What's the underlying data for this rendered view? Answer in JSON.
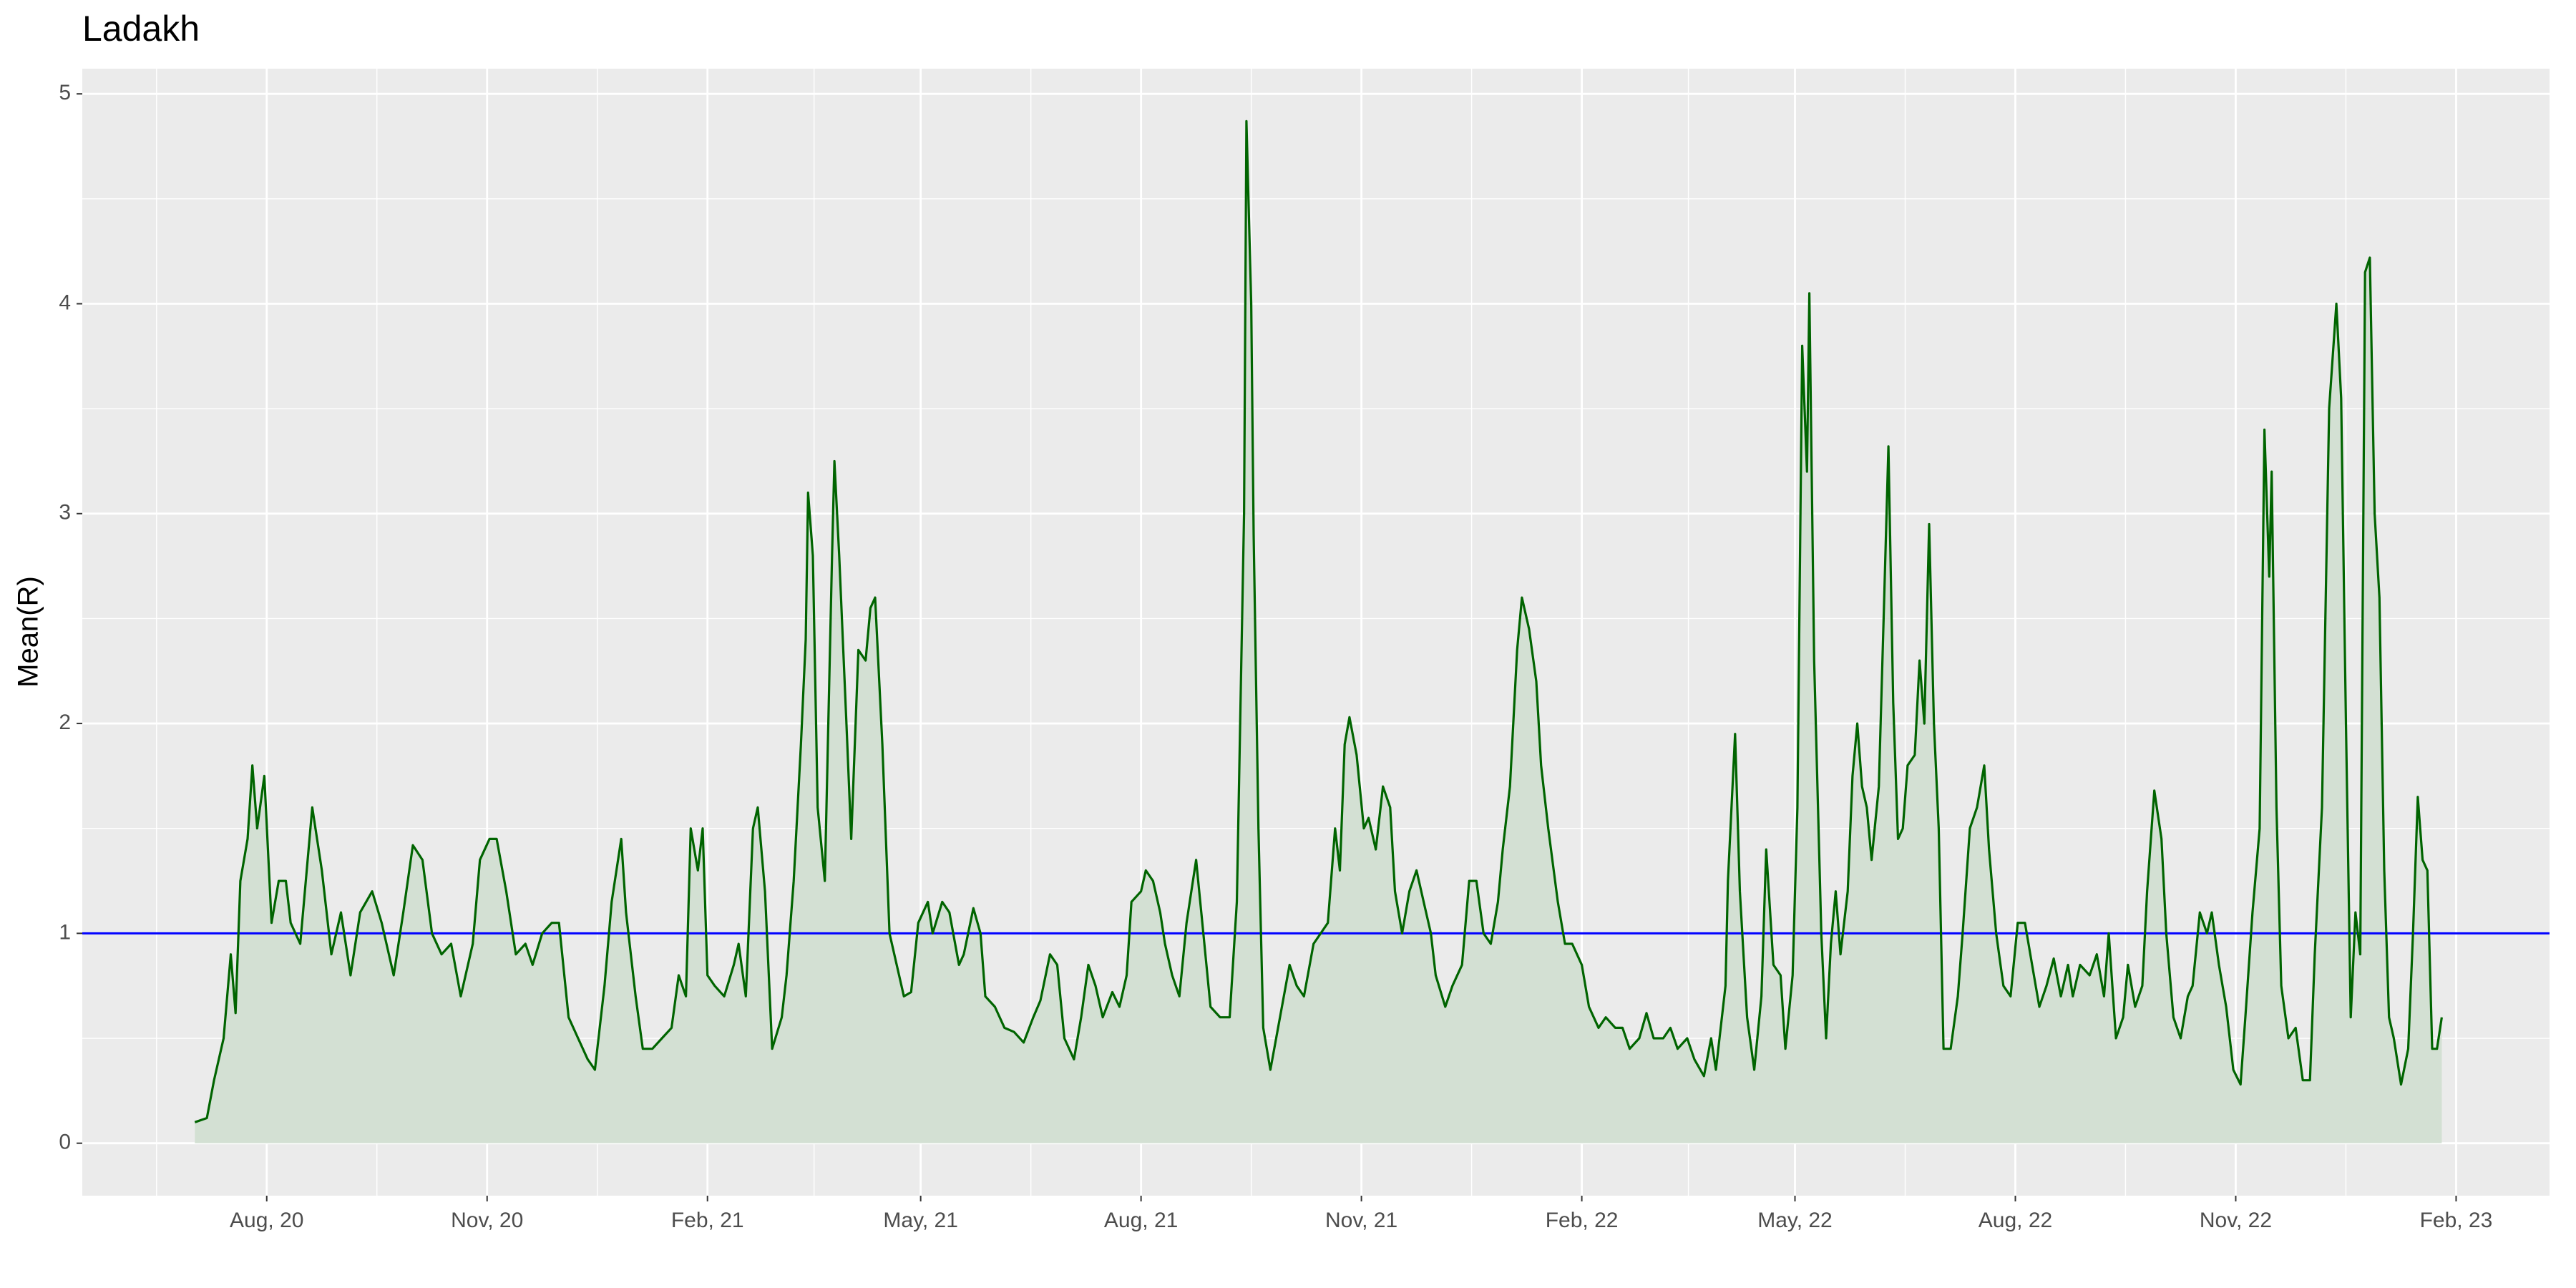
{
  "chart_data": {
    "type": "area-line",
    "title": "Ladakh",
    "y_label": "Mean(R)",
    "x": [
      "2020-07-02",
      "2020-07-07",
      "2020-07-10",
      "2020-07-14",
      "2020-07-17",
      "2020-07-19",
      "2020-07-21",
      "2020-07-24",
      "2020-07-26",
      "2020-07-28",
      "2020-07-31",
      "2020-08-03",
      "2020-08-06",
      "2020-08-09",
      "2020-08-11",
      "2020-08-15",
      "2020-08-20",
      "2020-08-24",
      "2020-08-28",
      "2020-09-01",
      "2020-09-05",
      "2020-09-09",
      "2020-09-14",
      "2020-09-18",
      "2020-09-23",
      "2020-09-27",
      "2020-10-01",
      "2020-10-05",
      "2020-10-09",
      "2020-10-13",
      "2020-10-17",
      "2020-10-21",
      "2020-10-26",
      "2020-10-29",
      "2020-11-02",
      "2020-11-05",
      "2020-11-09",
      "2020-11-13",
      "2020-11-17",
      "2020-11-20",
      "2020-11-24",
      "2020-11-28",
      "2020-12-01",
      "2020-12-05",
      "2020-12-09",
      "2020-12-13",
      "2020-12-16",
      "2020-12-20",
      "2020-12-23",
      "2020-12-27",
      "2020-12-29",
      "2021-01-02",
      "2021-01-05",
      "2021-01-09",
      "2021-01-13",
      "2021-01-17",
      "2021-01-20",
      "2021-01-23",
      "2021-01-25",
      "2021-01-28",
      "2021-01-30",
      "2021-02-01",
      "2021-02-04",
      "2021-02-08",
      "2021-02-12",
      "2021-02-14",
      "2021-02-17",
      "2021-02-20",
      "2021-02-22",
      "2021-02-25",
      "2021-02-28",
      "2021-03-04",
      "2021-03-06",
      "2021-03-09",
      "2021-03-12",
      "2021-03-14",
      "2021-03-15",
      "2021-03-17",
      "2021-03-19",
      "2021-03-22",
      "2021-03-25",
      "2021-03-26",
      "2021-03-28",
      "2021-03-31",
      "2021-04-02",
      "2021-04-05",
      "2021-04-08",
      "2021-04-10",
      "2021-04-12",
      "2021-04-15",
      "2021-04-18",
      "2021-04-22",
      "2021-04-24",
      "2021-04-27",
      "2021-04-30",
      "2021-05-04",
      "2021-05-06",
      "2021-05-10",
      "2021-05-13",
      "2021-05-17",
      "2021-05-19",
      "2021-05-23",
      "2021-05-26",
      "2021-05-28",
      "2021-06-01",
      "2021-06-05",
      "2021-06-09",
      "2021-06-13",
      "2021-06-17",
      "2021-06-20",
      "2021-06-24",
      "2021-06-27",
      "2021-06-30",
      "2021-07-04",
      "2021-07-07",
      "2021-07-10",
      "2021-07-13",
      "2021-07-16",
      "2021-07-20",
      "2021-07-23",
      "2021-07-26",
      "2021-07-28",
      "2021-08-01",
      "2021-08-03",
      "2021-08-06",
      "2021-08-09",
      "2021-08-11",
      "2021-08-14",
      "2021-08-17",
      "2021-08-20",
      "2021-08-24",
      "2021-08-27",
      "2021-08-30",
      "2021-09-03",
      "2021-09-07",
      "2021-09-10",
      "2021-09-13",
      "2021-09-14",
      "2021-09-16",
      "2021-09-17",
      "2021-09-19",
      "2021-09-21",
      "2021-09-24",
      "2021-09-28",
      "2021-10-02",
      "2021-10-05",
      "2021-10-08",
      "2021-10-12",
      "2021-10-15",
      "2021-10-18",
      "2021-10-21",
      "2021-10-23",
      "2021-10-25",
      "2021-10-27",
      "2021-10-30",
      "2021-11-02",
      "2021-11-04",
      "2021-11-07",
      "2021-11-10",
      "2021-11-13",
      "2021-11-15",
      "2021-11-18",
      "2021-11-21",
      "2021-11-24",
      "2021-11-27",
      "2021-11-30",
      "2021-12-02",
      "2021-12-06",
      "2021-12-09",
      "2021-12-13",
      "2021-12-16",
      "2021-12-19",
      "2021-12-22",
      "2021-12-25",
      "2021-12-28",
      "2021-12-30",
      "2022-01-02",
      "2022-01-05",
      "2022-01-07",
      "2022-01-10",
      "2022-01-13",
      "2022-01-15",
      "2022-01-18",
      "2022-01-22",
      "2022-01-25",
      "2022-01-28",
      "2022-02-01",
      "2022-02-04",
      "2022-02-08",
      "2022-02-11",
      "2022-02-15",
      "2022-02-18",
      "2022-02-21",
      "2022-02-25",
      "2022-02-28",
      "2022-03-03",
      "2022-03-07",
      "2022-03-10",
      "2022-03-13",
      "2022-03-17",
      "2022-03-20",
      "2022-03-24",
      "2022-03-27",
      "2022-03-29",
      "2022-04-02",
      "2022-04-03",
      "2022-04-06",
      "2022-04-08",
      "2022-04-11",
      "2022-04-14",
      "2022-04-17",
      "2022-04-19",
      "2022-04-22",
      "2022-04-25",
      "2022-04-27",
      "2022-04-30",
      "2022-05-02",
      "2022-05-04",
      "2022-05-06",
      "2022-05-07",
      "2022-05-09",
      "2022-05-12",
      "2022-05-14",
      "2022-05-16",
      "2022-05-18",
      "2022-05-20",
      "2022-05-23",
      "2022-05-25",
      "2022-05-27",
      "2022-05-29",
      "2022-05-31",
      "2022-06-02",
      "2022-06-05",
      "2022-06-07",
      "2022-06-09",
      "2022-06-11",
      "2022-06-13",
      "2022-06-15",
      "2022-06-17",
      "2022-06-20",
      "2022-06-22",
      "2022-06-24",
      "2022-06-26",
      "2022-06-28",
      "2022-06-30",
      "2022-07-02",
      "2022-07-05",
      "2022-07-08",
      "2022-07-10",
      "2022-07-13",
      "2022-07-16",
      "2022-07-19",
      "2022-07-21",
      "2022-07-24",
      "2022-07-27",
      "2022-07-30",
      "2022-08-02",
      "2022-08-05",
      "2022-08-08",
      "2022-08-11",
      "2022-08-14",
      "2022-08-17",
      "2022-08-20",
      "2022-08-23",
      "2022-08-25",
      "2022-08-28",
      "2022-09-01",
      "2022-09-04",
      "2022-09-07",
      "2022-09-09",
      "2022-09-12",
      "2022-09-15",
      "2022-09-17",
      "2022-09-20",
      "2022-09-23",
      "2022-09-25",
      "2022-09-28",
      "2022-10-01",
      "2022-10-03",
      "2022-10-06",
      "2022-10-09",
      "2022-10-12",
      "2022-10-14",
      "2022-10-17",
      "2022-10-20",
      "2022-10-22",
      "2022-10-25",
      "2022-10-28",
      "2022-10-31",
      "2022-11-03",
      "2022-11-05",
      "2022-11-08",
      "2022-11-11",
      "2022-11-13",
      "2022-11-15",
      "2022-11-16",
      "2022-11-18",
      "2022-11-20",
      "2022-11-23",
      "2022-11-26",
      "2022-11-29",
      "2022-12-02",
      "2022-12-04",
      "2022-12-07",
      "2022-12-10",
      "2022-12-13",
      "2022-12-15",
      "2022-12-17",
      "2022-12-19",
      "2022-12-21",
      "2022-12-23",
      "2022-12-25",
      "2022-12-27",
      "2022-12-29",
      "2022-12-31",
      "2023-01-02",
      "2023-01-04",
      "2023-01-06",
      "2023-01-09",
      "2023-01-12",
      "2023-01-14",
      "2023-01-16",
      "2023-01-18",
      "2023-01-20",
      "2023-01-22",
      "2023-01-24",
      "2023-01-26"
    ],
    "values": [
      0.1,
      0.12,
      0.3,
      0.5,
      0.9,
      0.62,
      1.25,
      1.45,
      1.8,
      1.5,
      1.75,
      1.05,
      1.25,
      1.25,
      1.05,
      0.95,
      1.6,
      1.3,
      0.9,
      1.1,
      0.8,
      1.1,
      1.2,
      1.05,
      0.8,
      1.1,
      1.42,
      1.35,
      1.0,
      0.9,
      0.95,
      0.7,
      0.95,
      1.35,
      1.45,
      1.45,
      1.2,
      0.9,
      0.95,
      0.85,
      1.0,
      1.05,
      1.05,
      0.6,
      0.5,
      0.4,
      0.35,
      0.75,
      1.15,
      1.45,
      1.1,
      0.7,
      0.45,
      0.45,
      0.5,
      0.55,
      0.8,
      0.7,
      1.5,
      1.3,
      1.5,
      0.8,
      0.75,
      0.7,
      0.85,
      0.95,
      0.7,
      1.5,
      1.6,
      1.2,
      0.45,
      0.6,
      0.8,
      1.25,
      1.9,
      2.4,
      3.1,
      2.8,
      1.6,
      1.25,
      2.8,
      3.25,
      2.8,
      2.0,
      1.45,
      2.35,
      2.3,
      2.55,
      2.6,
      1.9,
      1.0,
      0.8,
      0.7,
      0.72,
      1.05,
      1.15,
      1.0,
      1.15,
      1.1,
      0.85,
      0.9,
      1.12,
      1.0,
      0.7,
      0.65,
      0.55,
      0.53,
      0.48,
      0.6,
      0.68,
      0.9,
      0.85,
      0.5,
      0.4,
      0.6,
      0.85,
      0.75,
      0.6,
      0.72,
      0.65,
      0.8,
      1.15,
      1.2,
      1.3,
      1.25,
      1.1,
      0.95,
      0.8,
      0.7,
      1.05,
      1.35,
      1.0,
      0.65,
      0.6,
      0.6,
      1.15,
      3.0,
      4.87,
      4.0,
      2.9,
      1.5,
      0.55,
      0.35,
      0.6,
      0.85,
      0.75,
      0.7,
      0.95,
      1.0,
      1.05,
      1.5,
      1.3,
      1.9,
      2.03,
      1.85,
      1.5,
      1.55,
      1.4,
      1.7,
      1.6,
      1.2,
      1.0,
      1.2,
      1.3,
      1.15,
      1.0,
      0.8,
      0.65,
      0.75,
      0.85,
      1.25,
      1.25,
      1.0,
      0.95,
      1.15,
      1.4,
      1.7,
      2.35,
      2.6,
      2.45,
      2.2,
      1.8,
      1.5,
      1.15,
      0.95,
      0.95,
      0.85,
      0.65,
      0.55,
      0.6,
      0.55,
      0.55,
      0.45,
      0.5,
      0.62,
      0.5,
      0.5,
      0.55,
      0.45,
      0.5,
      0.4,
      0.32,
      0.5,
      0.35,
      0.75,
      1.25,
      1.95,
      1.2,
      0.6,
      0.35,
      0.7,
      1.4,
      0.85,
      0.8,
      0.45,
      0.8,
      1.6,
      3.8,
      3.2,
      4.05,
      2.3,
      1.0,
      0.5,
      0.95,
      1.2,
      0.9,
      1.2,
      1.75,
      2.0,
      1.7,
      1.6,
      1.35,
      1.7,
      2.5,
      3.32,
      2.1,
      1.45,
      1.5,
      1.8,
      1.85,
      2.3,
      2.0,
      2.95,
      2.0,
      1.5,
      0.45,
      0.45,
      0.7,
      1.0,
      1.5,
      1.6,
      1.8,
      1.4,
      1.0,
      0.75,
      0.7,
      1.05,
      1.05,
      0.85,
      0.65,
      0.75,
      0.88,
      0.7,
      0.85,
      0.7,
      0.85,
      0.8,
      0.9,
      0.7,
      1.0,
      0.5,
      0.6,
      0.85,
      0.65,
      0.75,
      1.2,
      1.68,
      1.45,
      1.0,
      0.6,
      0.5,
      0.7,
      0.75,
      1.1,
      1.0,
      1.1,
      0.85,
      0.65,
      0.35,
      0.28,
      0.6,
      1.1,
      1.5,
      3.4,
      2.7,
      3.2,
      1.6,
      0.75,
      0.5,
      0.55,
      0.3,
      0.3,
      0.9,
      1.6,
      3.5,
      4.0,
      3.55,
      2.0,
      0.6,
      1.1,
      0.9,
      4.15,
      4.22,
      3.0,
      2.6,
      1.3,
      0.6,
      0.5,
      0.28,
      0.45,
      1.0,
      1.65,
      1.35,
      1.3,
      0.45,
      0.45,
      0.6
    ],
    "color": "#006400",
    "area_color": "#d3e0d3",
    "reference_line": {
      "value": 1,
      "color": "#0000ff"
    },
    "xlim": [
      "2020-05-16",
      "2023-03-12"
    ],
    "xticks": [
      {
        "value": "2020-08-01",
        "label": "Aug, 20"
      },
      {
        "value": "2020-11-01",
        "label": "Nov, 20"
      },
      {
        "value": "2021-02-01",
        "label": "Feb, 21"
      },
      {
        "value": "2021-05-01",
        "label": "May, 21"
      },
      {
        "value": "2021-08-01",
        "label": "Aug, 21"
      },
      {
        "value": "2021-11-01",
        "label": "Nov, 21"
      },
      {
        "value": "2022-02-01",
        "label": "Feb, 22"
      },
      {
        "value": "2022-05-01",
        "label": "May, 22"
      },
      {
        "value": "2022-08-01",
        "label": "Aug, 22"
      },
      {
        "value": "2022-11-01",
        "label": "Nov, 22"
      },
      {
        "value": "2023-02-01",
        "label": "Feb, 23"
      }
    ],
    "ylim": [
      -0.25,
      5.12
    ],
    "yticks": [
      0,
      1,
      2,
      3,
      4,
      5
    ],
    "grid": true
  }
}
